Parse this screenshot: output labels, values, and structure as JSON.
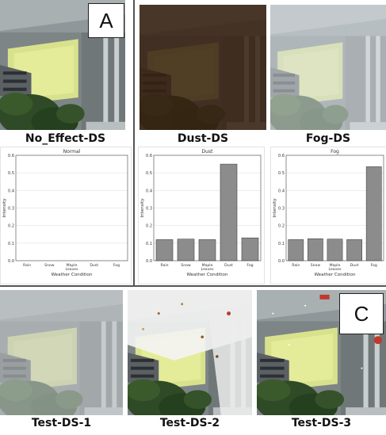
{
  "panels": {
    "a": {
      "letter": "A",
      "captions": [
        "No_Effect-DS",
        "Dust-DS",
        "Fog-DS"
      ]
    },
    "c": {
      "letter": "C",
      "captions": [
        "Test-DS-1",
        "Test-DS-2",
        "Test-DS-3"
      ]
    }
  },
  "chart_data": [
    {
      "type": "bar",
      "title": "Normal",
      "xlabel": "Weather Condition",
      "ylabel": "Intensity",
      "categories": [
        "Rain",
        "Snow",
        "Maple Leaves",
        "Dust",
        "Fog"
      ],
      "values": [
        0,
        0,
        0,
        0,
        0
      ],
      "ylim": [
        0,
        0.6
      ],
      "yticks": [
        "0.0",
        "0.1",
        "0.2",
        "0.3",
        "0.4",
        "0.5",
        "0.6"
      ],
      "grid": true,
      "bar_color": "#8c8c8c"
    },
    {
      "type": "bar",
      "title": "Dust",
      "xlabel": "Weather Condition",
      "ylabel": "Intensity",
      "categories": [
        "Rain",
        "Snow",
        "Maple Leaves",
        "Dust",
        "Fog"
      ],
      "values": [
        0.12,
        0.123,
        0.12,
        0.55,
        0.13
      ],
      "ylim": [
        0,
        0.6
      ],
      "yticks": [
        "0.0",
        "0.1",
        "0.2",
        "0.3",
        "0.4",
        "0.5",
        "0.6"
      ],
      "grid": true,
      "bar_color": "#8c8c8c"
    },
    {
      "type": "bar",
      "title": "Fog",
      "xlabel": "Weather Condition",
      "ylabel": "Intensity",
      "categories": [
        "Rain",
        "Snow",
        "Maple Leaves",
        "Dust",
        "Fog"
      ],
      "values": [
        0.12,
        0.125,
        0.123,
        0.12,
        0.535
      ],
      "ylim": [
        0,
        0.6
      ],
      "yticks": [
        "0.0",
        "0.1",
        "0.2",
        "0.3",
        "0.4",
        "0.5",
        "0.6"
      ],
      "grid": true,
      "bar_color": "#8c8c8c"
    }
  ]
}
